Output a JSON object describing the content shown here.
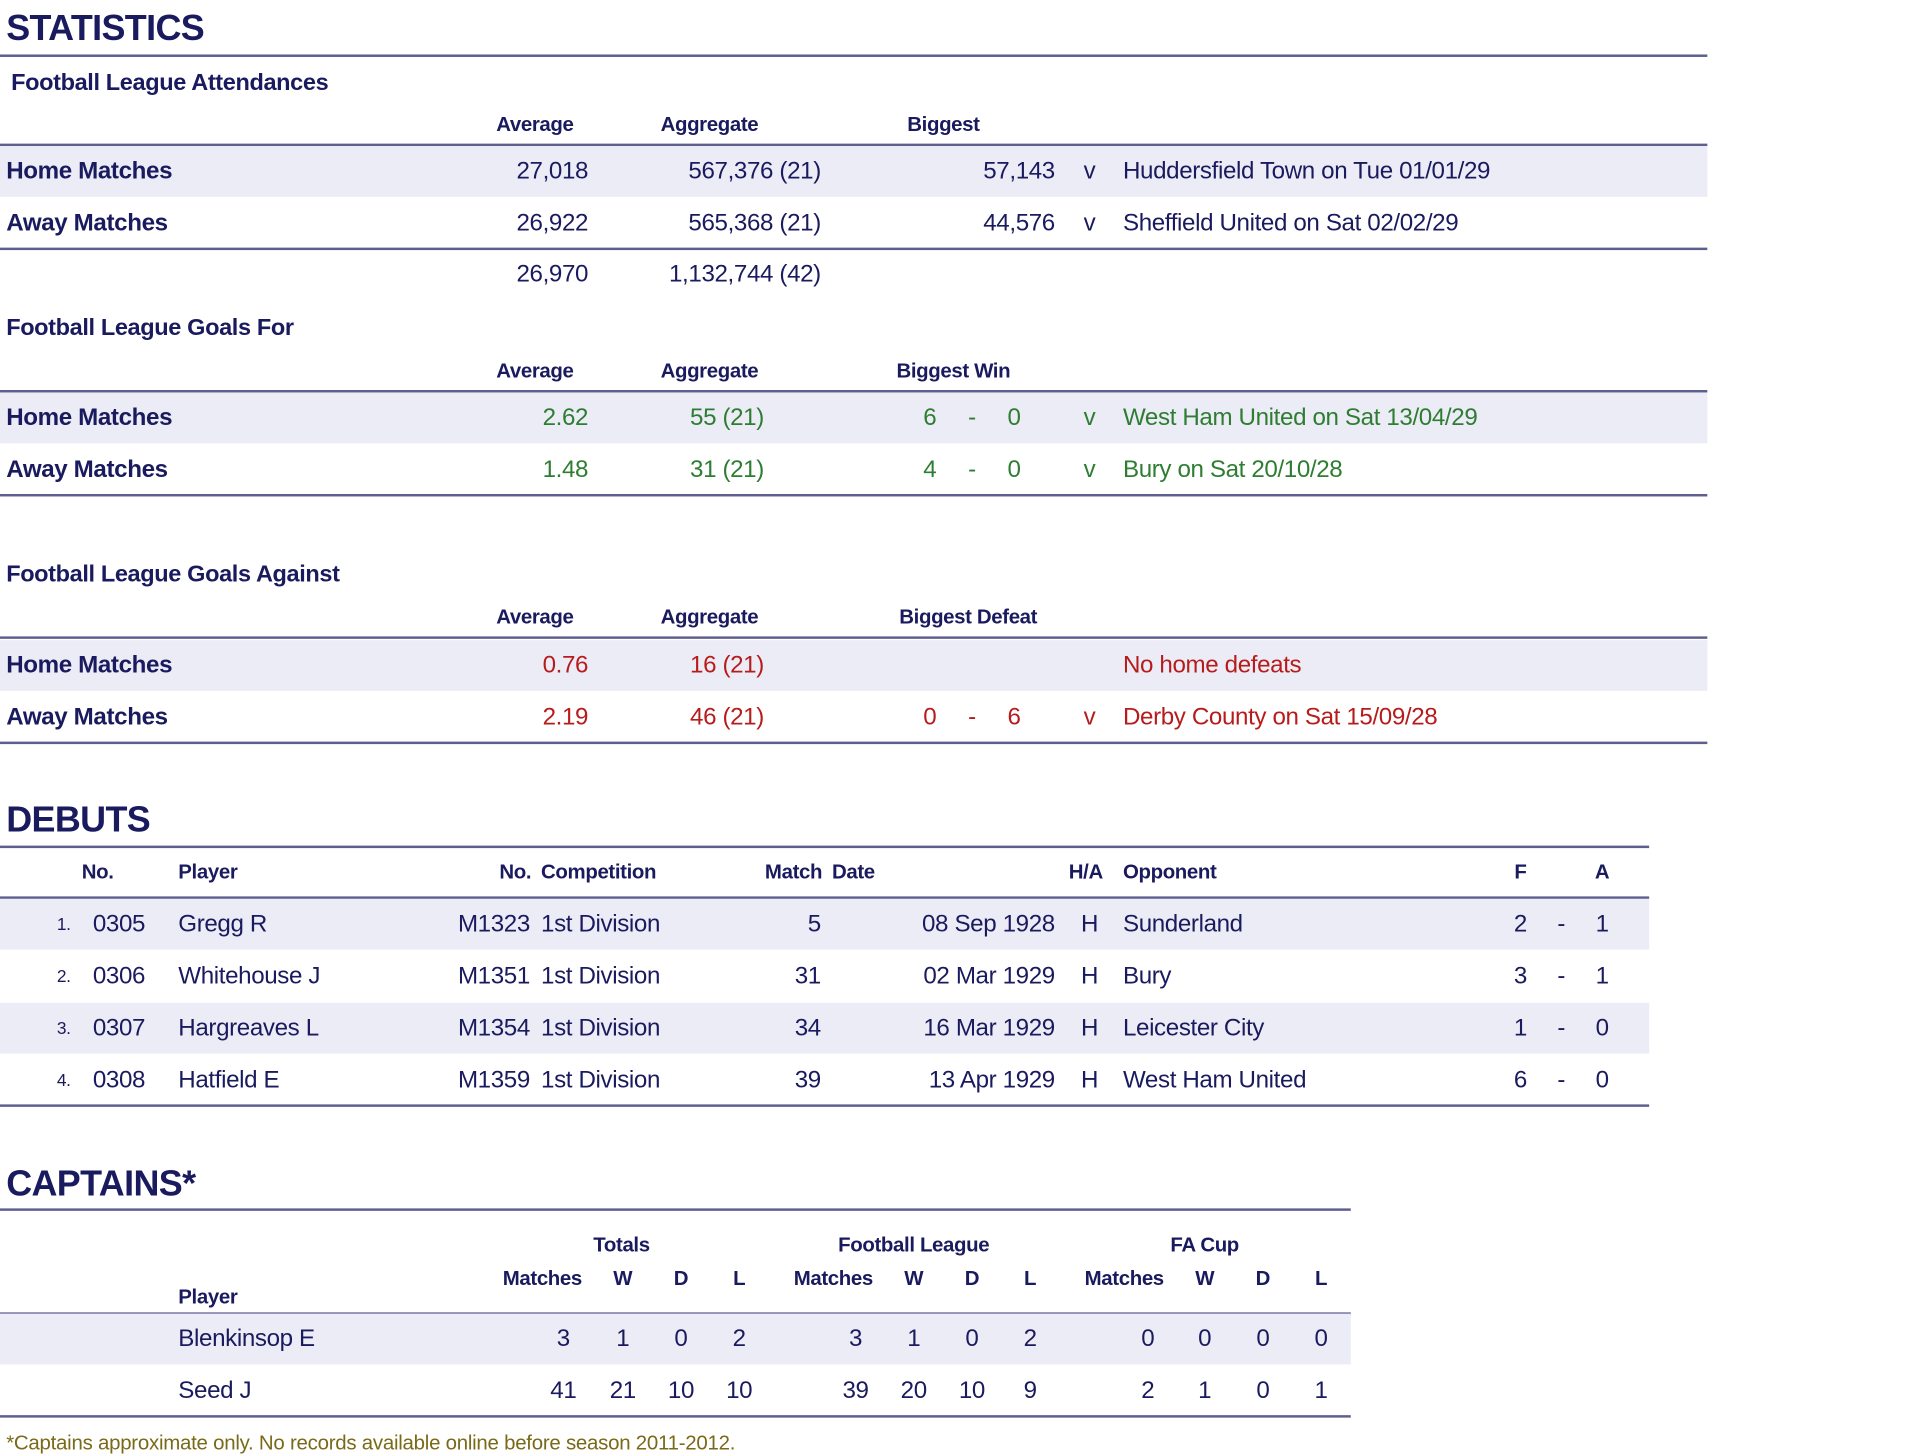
{
  "statistics": {
    "title": "STATISTICS",
    "attendances": {
      "title": "Football League Attendances",
      "headers": {
        "average": "Average",
        "aggregate": "Aggregate",
        "biggest": "Biggest"
      },
      "rows": [
        {
          "label": "Home Matches",
          "average": "27,018",
          "aggregate": "567,376 (21)",
          "biggest": "57,143",
          "v": "v",
          "detail": "Huddersfield Town on Tue 01/01/29"
        },
        {
          "label": "Away Matches",
          "average": "26,922",
          "aggregate": "565,368 (21)",
          "biggest": "44,576",
          "v": "v",
          "detail": "Sheffield United on Sat 02/02/29"
        }
      ],
      "total": {
        "average": "26,970",
        "aggregate": "1,132,744 (42)"
      }
    },
    "goals_for": {
      "title": "Football League Goals For",
      "headers": {
        "average": "Average",
        "aggregate": "Aggregate",
        "biggest": "Biggest Win"
      },
      "color": "#2e7d32",
      "rows": [
        {
          "label": "Home Matches",
          "average": "2.62",
          "aggregate": "55 (21)",
          "f": "6",
          "dash": "-",
          "a": "0",
          "v": "v",
          "detail": "West Ham United on Sat 13/04/29"
        },
        {
          "label": "Away Matches",
          "average": "1.48",
          "aggregate": "31 (21)",
          "f": "4",
          "dash": "-",
          "a": "0",
          "v": "v",
          "detail": "Bury on Sat 20/10/28"
        }
      ]
    },
    "goals_against": {
      "title": "Football League Goals Against",
      "headers": {
        "average": "Average",
        "aggregate": "Aggregate",
        "biggest": "Biggest Defeat"
      },
      "color": "#b71c1c",
      "rows": [
        {
          "label": "Home Matches",
          "average": "0.76",
          "aggregate": "16 (21)",
          "f": "",
          "dash": "",
          "a": "",
          "v": "",
          "detail": "No home defeats"
        },
        {
          "label": "Away Matches",
          "average": "2.19",
          "aggregate": "46 (21)",
          "f": "0",
          "dash": "-",
          "a": "6",
          "v": "v",
          "detail": "Derby County on Sat 15/09/28"
        }
      ]
    }
  },
  "debuts": {
    "title": "DEBUTS",
    "headers": {
      "no": "No.",
      "player": "Player",
      "match_no": "No.",
      "competition": "Competition",
      "match": "Match",
      "date": "Date",
      "ha": "H/A",
      "opponent": "Opponent",
      "f": "F",
      "a": "A"
    },
    "rows": [
      {
        "idx": "1.",
        "no": "0305",
        "player": "Gregg R",
        "match_no": "M1323",
        "competition": "1st Division",
        "match": "5",
        "date": "08 Sep 1928",
        "ha": "H",
        "opponent": "Sunderland",
        "f": "2",
        "dash": "-",
        "a": "1"
      },
      {
        "idx": "2.",
        "no": "0306",
        "player": "Whitehouse J",
        "match_no": "M1351",
        "competition": "1st Division",
        "match": "31",
        "date": "02 Mar 1929",
        "ha": "H",
        "opponent": "Bury",
        "f": "3",
        "dash": "-",
        "a": "1"
      },
      {
        "idx": "3.",
        "no": "0307",
        "player": "Hargreaves L",
        "match_no": "M1354",
        "competition": "1st Division",
        "match": "34",
        "date": "16 Mar 1929",
        "ha": "H",
        "opponent": "Leicester City",
        "f": "1",
        "dash": "-",
        "a": "0"
      },
      {
        "idx": "4.",
        "no": "0308",
        "player": "Hatfield E",
        "match_no": "M1359",
        "competition": "1st Division",
        "match": "39",
        "date": "13 Apr 1929",
        "ha": "H",
        "opponent": "West Ham United",
        "f": "6",
        "dash": "-",
        "a": "0"
      }
    ]
  },
  "captains": {
    "title": "CAPTAINS*",
    "groups": [
      "Totals",
      "Football League",
      "FA Cup"
    ],
    "subheaders": [
      "Matches",
      "W",
      "D",
      "L"
    ],
    "player_header": "Player",
    "rows": [
      {
        "player": "Blenkinsop E",
        "values": [
          "3",
          "1",
          "0",
          "2",
          "3",
          "1",
          "0",
          "2",
          "0",
          "0",
          "0",
          "0"
        ]
      },
      {
        "player": "Seed J",
        "values": [
          "41",
          "21",
          "10",
          "10",
          "39",
          "20",
          "10",
          "9",
          "2",
          "1",
          "0",
          "1"
        ]
      }
    ],
    "footnote": "*Captains approximate only.  No records available online before season 2011-2012."
  }
}
